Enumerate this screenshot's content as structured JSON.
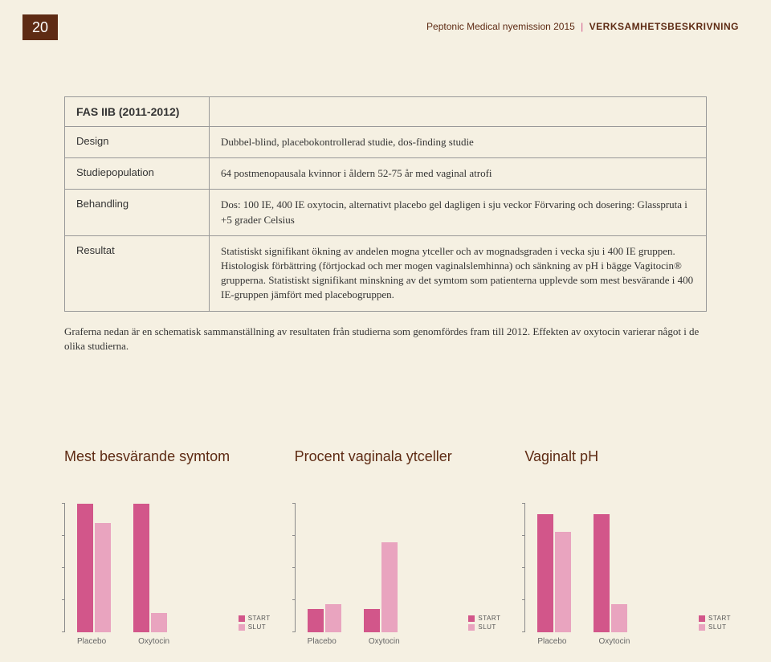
{
  "page_number": "20",
  "header": {
    "left": "Peptonic Medical nyemission 2015",
    "right": "VERKSAMHETSBESKRIVNING"
  },
  "table": {
    "fas_header": "FAS IIB (2011-2012)",
    "rows": [
      {
        "label": "Design",
        "value": "Dubbel-blind, placebokontrollerad studie, dos-finding studie"
      },
      {
        "label": "Studiepopulation",
        "value": "64 postmenopausala kvinnor i åldern 52-75 år med vaginal atrofi"
      },
      {
        "label": "Behandling",
        "value": "Dos: 100 IE, 400 IE oxytocin, alternativt placebo gel dagligen i sju veckor\nFörvaring och dosering: Glasspruta i +5 grader Celsius"
      },
      {
        "label": "Resultat",
        "value": "Statistiskt signifikant ökning av andelen mogna ytceller och av mognadsgraden i vecka sju i 400 IE gruppen. Histologisk förbättring (förtjockad och mer mogen vaginalslemhinna) och sänkning av pH i bägge Vagitocin® grupperna. Statistiskt signifikant minskning av det symtom som patienterna upplevde som mest besvärande i 400 IE-gruppen jämfört med placebogruppen."
      }
    ]
  },
  "below_text": "Graferna nedan är en schematisk sammanställning av resultaten från studierna som genomfördes fram till 2012. Effekten av oxytocin varierar något i de olika studierna.",
  "charts": [
    {
      "title": "Mest besvärande symtom",
      "ylim": [
        0,
        100
      ],
      "ticks": [
        0,
        25,
        50,
        75,
        100
      ],
      "pairs": [
        {
          "start": 100,
          "slut": 85
        },
        {
          "start": 100,
          "slut": 15
        }
      ],
      "xlabels": [
        "Placebo",
        "Oxytocin"
      ]
    },
    {
      "title": "Procent vaginala ytceller",
      "ylim": [
        0,
        100
      ],
      "ticks": [
        0,
        25,
        50,
        75,
        100
      ],
      "pairs": [
        {
          "start": 18,
          "slut": 22
        },
        {
          "start": 18,
          "slut": 70
        }
      ],
      "xlabels": [
        "Placebo",
        "Oxytocin"
      ]
    },
    {
      "title": "Vaginalt pH",
      "ylim": [
        0,
        100
      ],
      "ticks": [
        0,
        25,
        50,
        75,
        100
      ],
      "pairs": [
        {
          "start": 92,
          "slut": 78
        },
        {
          "start": 92,
          "slut": 22
        }
      ],
      "xlabels": [
        "Placebo",
        "Oxytocin"
      ]
    }
  ],
  "colors": {
    "start": "#d2568a",
    "slut": "#e9a4bf",
    "page_badge": "#5e2b14"
  },
  "legend": {
    "start": "START",
    "slut": "SLUT"
  }
}
